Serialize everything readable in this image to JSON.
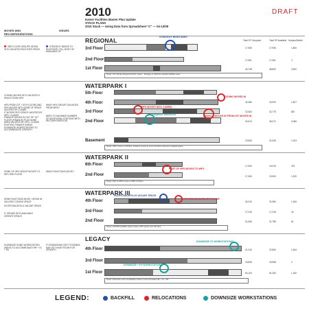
{
  "header": {
    "year": "2010",
    "subtitle_lines": [
      "Kaiser Facilities Master Plan Update",
      "STACK PLANS",
      "2010 Stack — Using Data from Spreadsheet \"C\" — 04-13/09"
    ],
    "draft": "DRAFT",
    "col_moves": "MOVES AND RECONFIGURATIONS",
    "col_issues": "ISSUES"
  },
  "sections": {
    "regional": {
      "title": "REGIONAL",
      "floors": [
        "3rd Floor",
        "2nd Floor",
        "1st Floor"
      ],
      "callouts": [
        "STRATEGY RIGHTSIZES"
      ],
      "moves": [
        "3RD FLOOR GROUPS GROW INTO VACATED FACILITIES SPACE"
      ],
      "issues": [
        "STRATEGY NEEDS TO RIGHTSIZE / FILL MOST OF AVAILABLE SF"
      ]
    },
    "waterpark1": {
      "title": "WATERPARK I",
      "floors": [
        "5th Floor",
        "4th Floor",
        "3rd Floor",
        "2nd Floor",
        "Basement"
      ],
      "callouts": [
        "CODING MOVES IN",
        "HPS MOVES INTO 4 (WBS)",
        "FINANCE MOVES IN FROM 1ST MOVES IN",
        "FINANCE SERVICES"
      ],
      "moves": [
        "CODING MOVES INTO VACATED 5 SPACE FROM HPS",
        "HPS FROM 1ST + 5TH FLOORS AND HPS MOVES INTO SOME OF SPACE VACATED BY CLAIMS",
        "IT MOVES INTO SPACE VACATED BY HPS / CLAIMS",
        "FINANCE MOVES IN OUT OF 1ST FLOOR (FINANCE) PLUS SOME AREA VACATED BY HPS / CLAIMS",
        "EXISTING FINANCE AREAS DOWNSIZE WORKSTATIONS TO ACCOMMODATE GROWTH"
      ],
      "issues": [
        "WHAT HPS GROUP CAN MOVE FROM WP/II?",
        "NEED TO MAXIMIZE NUMBER OF ADDITIONAL STATIONS WITH RECONFIGURATION"
      ]
    },
    "waterpark2": {
      "title": "WATERPARK II",
      "floors": [
        "6th Floor",
        "2nd Floor"
      ],
      "callouts": [
        "PART OF HPS MOVES TO WP1"
      ],
      "moves": [
        "SOME OF HPS GROUP MOVES TO WP1 3RD FLOOR"
      ],
      "issues": [
        "WHAT FUNCTIONS MOVE?"
      ]
    },
    "waterpark3": {
      "title": "WATERPARK III",
      "floors": [
        "4th Floor",
        "3rd Floor",
        "2nd Floor"
      ],
      "callouts": [
        "HCOPS BACKFILLS VACANT SPACE",
        "HPS GROWS ONTO 4TH FLOOR"
      ],
      "moves": [
        "GRIM FUNCTIONS MOVE / GROW IN VACATED CODING SPACE",
        "HCOPS BACKFILLS VACANT SPACE",
        "IT GROWS INTO AVAILABLE GROWTH SPACE"
      ],
      "issues": []
    },
    "legacy": {
      "title": "LEGACY",
      "floors": [
        "4th Floor",
        "3rd Floor",
        "1st Floor"
      ],
      "callouts": [
        "DOWNSIZE TO WORKSTATIONS",
        "DOWNSIZE + FX WORKSTATIONS"
      ],
      "moves": [
        "DOWNSIZE SOME WORKSTATION AREAS TO ACCOMMODATE HR + GI + PA"
      ],
      "issues": [
        "IT DOWNSIZING ISN'T POSSIBLE MAY NOT HAVE ROOM FOR GROWTH"
      ]
    }
  },
  "numbers": {
    "regional": [
      [
        "17,996",
        "17,996",
        "1,800"
      ],
      [
        "17,561",
        "17,561",
        "2"
      ],
      [
        "49,748",
        "48,890",
        "3,900"
      ]
    ],
    "wp1": [
      [
        "32,486",
        "40,920",
        "1,507"
      ],
      [
        "32,363",
        "32,775",
        "867"
      ],
      [
        "33,913",
        "38,472",
        "3,086"
      ],
      [
        "23,965",
        "31,095",
        "1,003"
      ]
    ],
    "wp2": [
      [
        "17,506",
        "18,315",
        "475"
      ],
      [
        "17,406",
        "19,506",
        "1,200"
      ]
    ],
    "wp3": [
      [
        "30,015",
        "31,980",
        "1,945"
      ],
      [
        "17,225",
        "17,225",
        "16"
      ],
      [
        "31,966",
        "31,785",
        "81"
      ]
    ],
    "legacy": [
      [
        "21,316",
        "22,860",
        "1,544"
      ],
      [
        "43,808",
        "43,988",
        "0"
      ],
      [
        "50,100",
        "51,250",
        "1,150"
      ]
    ]
  },
  "col_headers": [
    "Total SF Occupied",
    "Total SF Available",
    "Surplus/Deficit"
  ],
  "legend": {
    "title": "LEGEND:",
    "items": [
      {
        "label": "BACKFILL",
        "color": "#2650a6"
      },
      {
        "label": "RELOCATIONS",
        "color": "#d8262b"
      },
      {
        "label": "DOWNSIZE WORKSTATIONS",
        "color": "#1b9e9e"
      }
    ]
  }
}
